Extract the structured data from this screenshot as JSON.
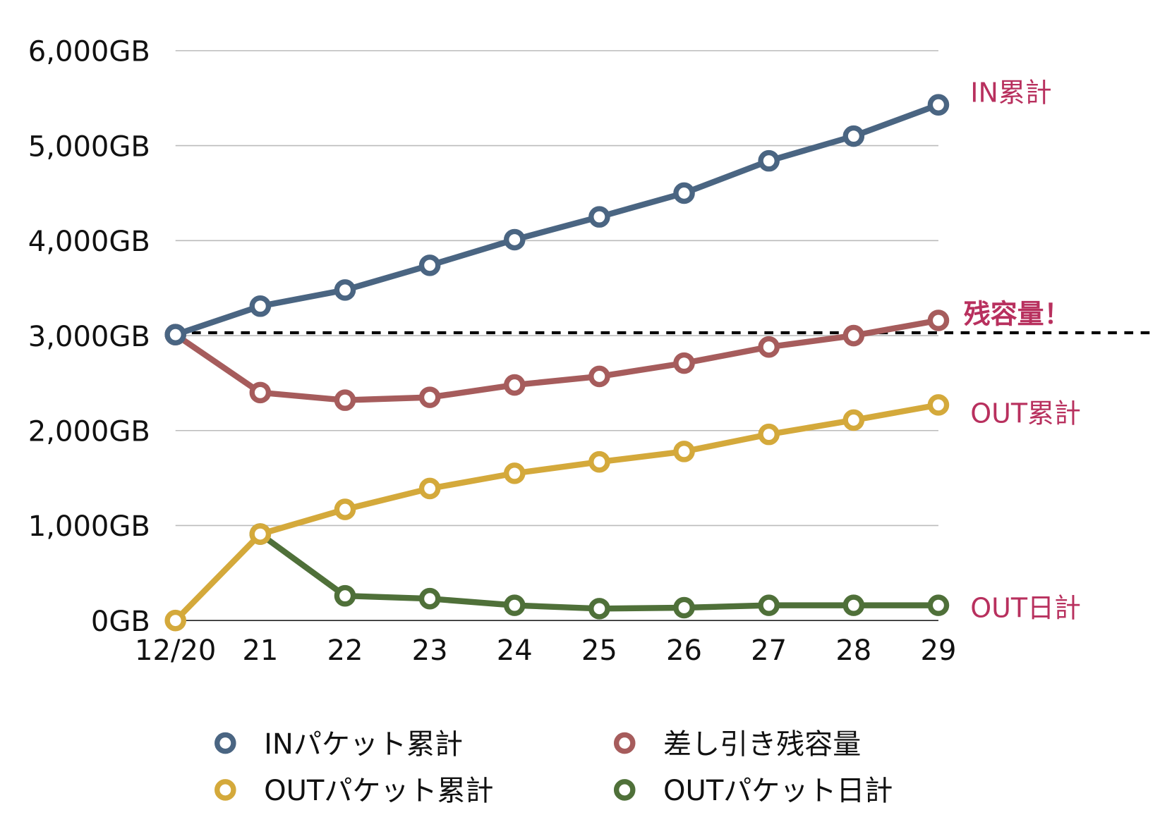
{
  "chart_data": {
    "type": "line",
    "title": "",
    "xlabel": "",
    "ylabel": "",
    "categories": [
      "12/20",
      "21",
      "22",
      "23",
      "24",
      "25",
      "26",
      "27",
      "28",
      "29"
    ],
    "ylim": [
      0,
      6000
    ],
    "y_ticks": [
      "0GB",
      "1,000GB",
      "2,000GB",
      "3,000GB",
      "4,000GB",
      "5,000GB",
      "6,000GB"
    ],
    "y_tick_values": [
      0,
      1000,
      2000,
      3000,
      4000,
      5000,
      6000
    ],
    "grid": true,
    "legend_position": "bottom",
    "threshold": {
      "value": 3030,
      "style": "dashed",
      "color": "#000000"
    },
    "series": [
      {
        "key": "in",
        "name": "INパケット累計",
        "end_label": "IN累計",
        "color": "#4a6582",
        "values": [
          3010,
          3310,
          3480,
          3740,
          4010,
          4250,
          4500,
          4840,
          5100,
          5430
        ]
      },
      {
        "key": "diff",
        "name": "差し引き残容量",
        "end_label": "残容量！",
        "color": "#a65c5c",
        "values": [
          3010,
          2400,
          2320,
          2350,
          2480,
          2570,
          2710,
          2880,
          3000,
          3160
        ]
      },
      {
        "key": "outcum",
        "name": "OUTパケット累計",
        "end_label": "OUT累計",
        "color": "#d4a93b",
        "values": [
          0,
          910,
          1170,
          1390,
          1550,
          1670,
          1780,
          1960,
          2110,
          2270
        ]
      },
      {
        "key": "outday",
        "name": "OUTパケット日計",
        "end_label": "OUT日計",
        "color": "#4f7039",
        "values": [
          null,
          910,
          260,
          230,
          160,
          125,
          135,
          160,
          160,
          160
        ]
      }
    ],
    "label_color": "#b8305e"
  }
}
